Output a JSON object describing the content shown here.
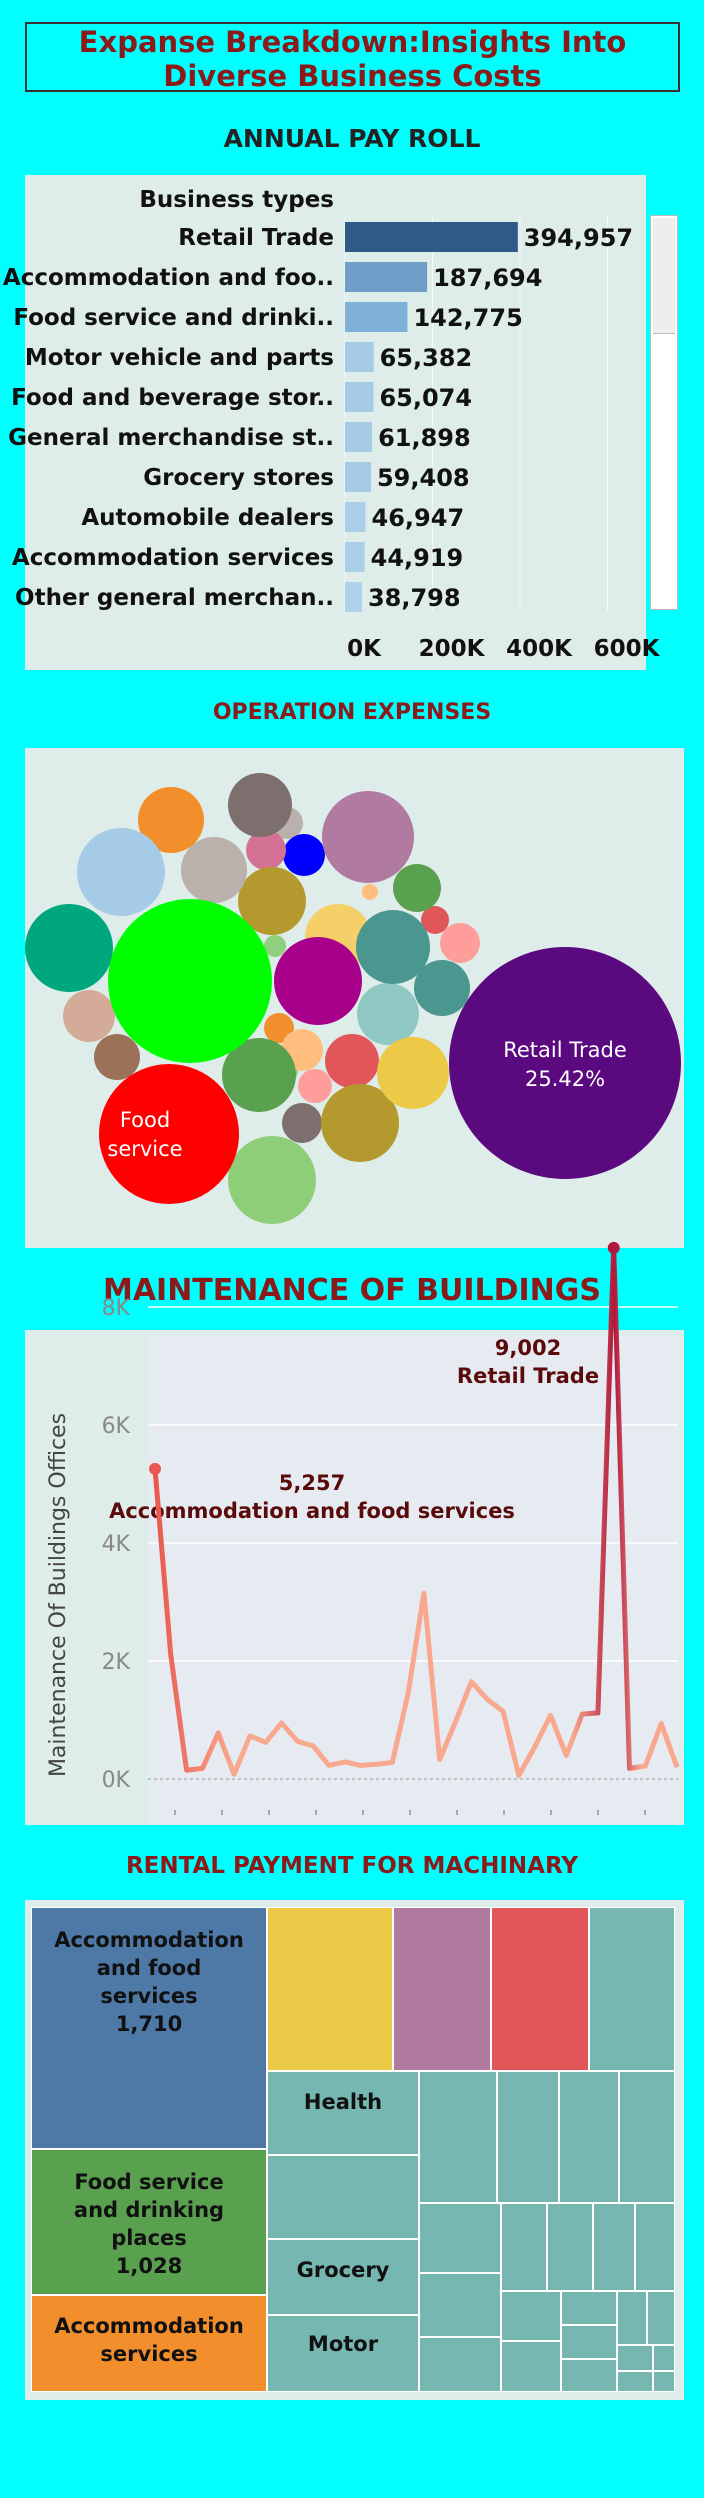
{
  "title": "Expanse Breakdown:Insights Into Diverse Business Costs",
  "payroll": {
    "title": "ANNUAL PAY ROLL",
    "header": "Business types",
    "rows": [
      {
        "label": "Retail Trade",
        "value": 394957,
        "text": "394,957",
        "color": "#2d5a87"
      },
      {
        "label": "Accommodation and foo..",
        "value": 187694,
        "text": "187,694",
        "color": "#6f9ec8"
      },
      {
        "label": "Food service and drinki..",
        "value": 142775,
        "text": "142,775",
        "color": "#80b1d8"
      },
      {
        "label": "Motor vehicle and parts",
        "value": 65382,
        "text": "65,382",
        "color": "#a6cbe6"
      },
      {
        "label": "Food and beverage stor..",
        "value": 65074,
        "text": "65,074",
        "color": "#a6cbe6"
      },
      {
        "label": "General merchandise st..",
        "value": 61898,
        "text": "61,898",
        "color": "#a6cbe6"
      },
      {
        "label": "Grocery stores",
        "value": 59408,
        "text": "59,408",
        "color": "#a6cbe6"
      },
      {
        "label": "Automobile dealers",
        "value": 46947,
        "text": "46,947",
        "color": "#abcfe8"
      },
      {
        "label": "Accommodation services",
        "value": 44919,
        "text": "44,919",
        "color": "#abcfe8"
      },
      {
        "label": "Other general merchan..",
        "value": 38798,
        "text": "38,798",
        "color": "#afd1ea"
      }
    ],
    "axis_ticks": [
      "0K",
      "200K",
      "400K",
      "600K"
    ],
    "axis_values": [
      0,
      200000,
      400000,
      600000
    ]
  },
  "operation": {
    "title": "OPERATION EXPENSES",
    "labels": {
      "retail": {
        "line1": "Retail Trade",
        "line2": "25.42%"
      },
      "food": {
        "line1": "Food",
        "line2": "service"
      }
    }
  },
  "maintenance": {
    "title": "MAINTENANCE OF BUILDINGS",
    "ylabel": "Maintenance Of Buildings Offices",
    "y_ticks": [
      "0K",
      "2K",
      "4K",
      "6K",
      "8K"
    ],
    "y_tick_values": [
      0,
      2000,
      4000,
      6000,
      8000
    ],
    "ylim": [
      0,
      9500
    ],
    "annotation_left": {
      "value": "5,257",
      "label": "Accommodation and food services"
    },
    "annotation_right": {
      "value": "9,002",
      "label": "Retail Trade"
    },
    "colors": {
      "start": "#e8584e",
      "peak": "#b0183c",
      "low": "#f9a890"
    }
  },
  "chart_data": [
    {
      "type": "bar",
      "title": "ANNUAL PAY ROLL",
      "categories": [
        "Retail Trade",
        "Accommodation and foo..",
        "Food service and drinki..",
        "Motor vehicle and parts",
        "Food and beverage stor..",
        "General merchandise st..",
        "Grocery stores",
        "Automobile dealers",
        "Accommodation services",
        "Other general merchan.."
      ],
      "values": [
        394957,
        187694,
        142775,
        65382,
        65074,
        61898,
        59408,
        46947,
        44919,
        38798
      ],
      "xlabel": "",
      "ylabel": "Business types",
      "xlim": [
        0,
        600000
      ]
    },
    {
      "type": "line",
      "title": "MAINTENANCE OF BUILDINGS",
      "ylabel": "Maintenance Of Buildings Offices",
      "ylim": [
        0,
        9500
      ],
      "values": [
        5257,
        2100,
        150,
        180,
        780,
        80,
        730,
        620,
        950,
        640,
        560,
        230,
        290,
        230,
        250,
        280,
        1450,
        3150,
        330,
        970,
        1650,
        1350,
        1150,
        60,
        540,
        1080,
        400,
        1100,
        1120,
        9002,
        180,
        220,
        940,
        200
      ]
    }
  ],
  "rental": {
    "title": "RENTAL PAYMENT FOR MACHINARY",
    "cells": [
      {
        "line1": "Accommodation",
        "line2": "and food",
        "line3": "services",
        "line4": "1,710"
      },
      {
        "line1": "Food service",
        "line2": "and drinking",
        "line3": "places",
        "line4": "1,028"
      },
      {
        "line1": "Accommodation",
        "line2": "services"
      },
      {
        "line1": "Health"
      },
      {
        "line1": "Grocery"
      },
      {
        "line1": "Motor"
      }
    ]
  }
}
